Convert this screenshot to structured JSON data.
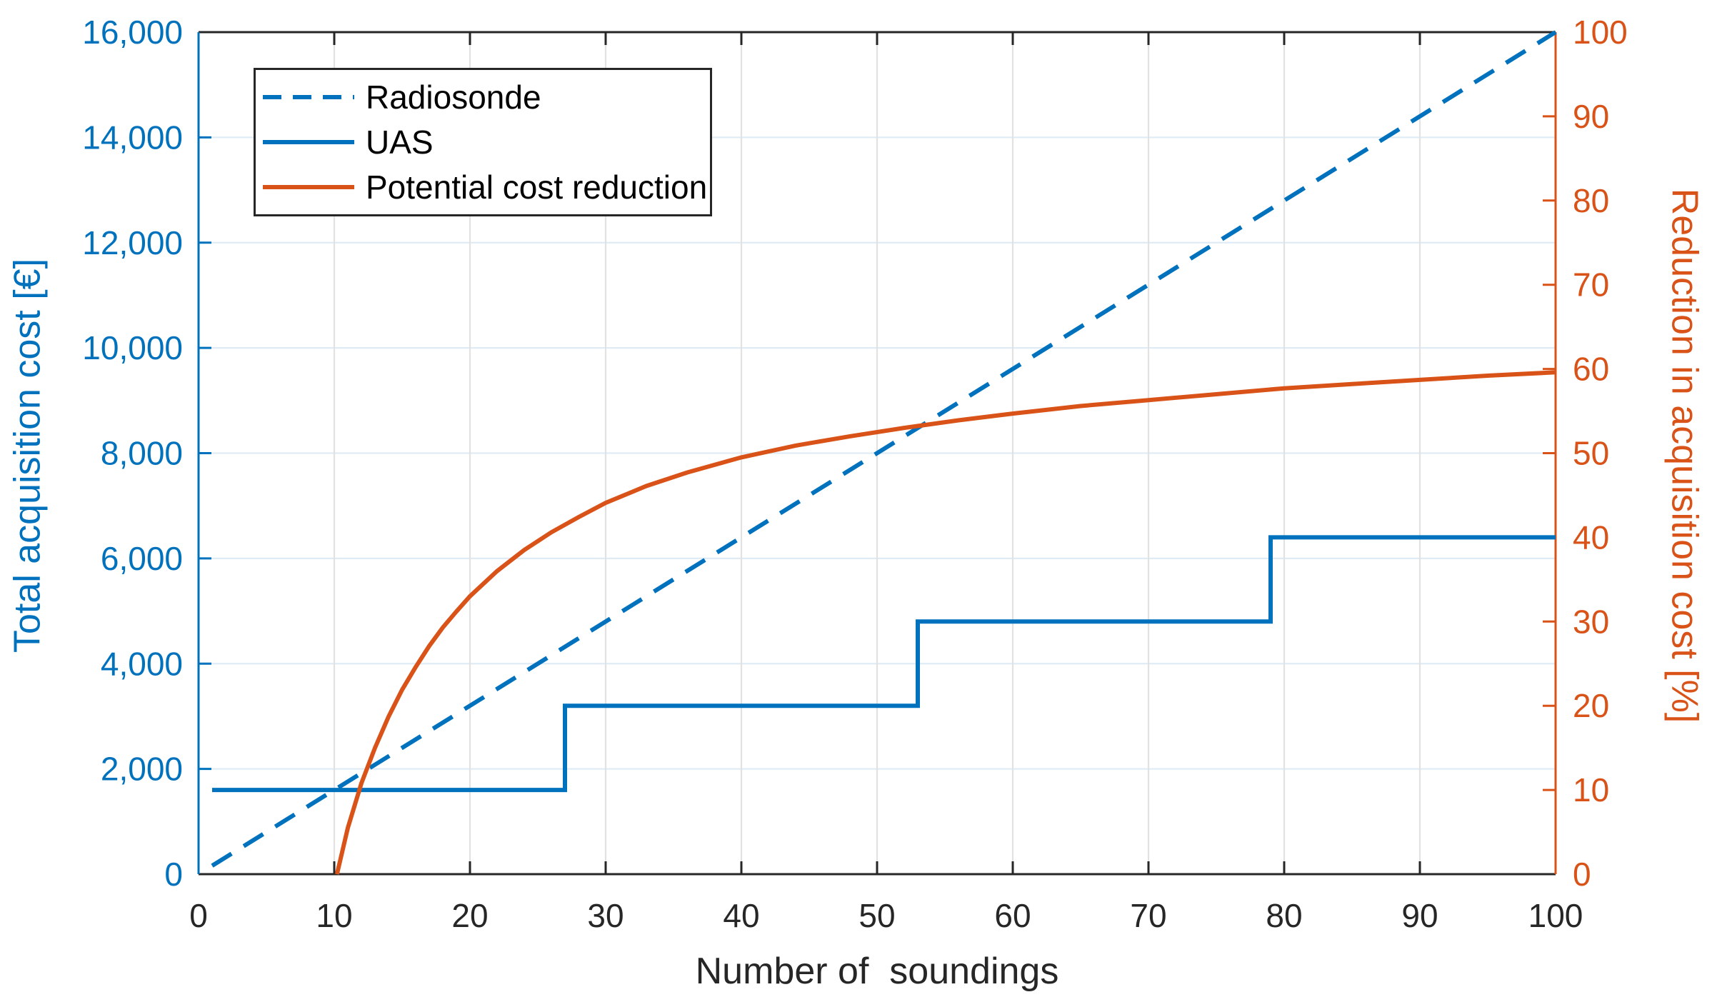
{
  "figure": {
    "background": "#ffffff",
    "x_axis": {
      "label": "Number of  soundings",
      "color": "#262626",
      "range": [
        0,
        100
      ],
      "tick_values": [
        0,
        10,
        20,
        30,
        40,
        50,
        60,
        70,
        80,
        90,
        100
      ],
      "tick_labels": [
        "0",
        "10",
        "20",
        "30",
        "40",
        "50",
        "60",
        "70",
        "80",
        "90",
        "100"
      ]
    },
    "left_axis": {
      "label": "Total acquisition cost [€]",
      "color": "#0072BD",
      "range": [
        0,
        16000
      ],
      "tick_values": [
        0,
        2000,
        4000,
        6000,
        8000,
        10000,
        12000,
        14000,
        16000
      ],
      "tick_labels": [
        "0",
        "2,000",
        "4,000",
        "6,000",
        "8,000",
        "10,000",
        "12,000",
        "14,000",
        "16,000"
      ]
    },
    "right_axis": {
      "label": "Reduction in acquisition cost [%]",
      "color": "#D95319",
      "range": [
        0,
        100
      ],
      "tick_values": [
        0,
        10,
        20,
        30,
        40,
        50,
        60,
        70,
        80,
        90,
        100
      ],
      "tick_labels": [
        "0",
        "10",
        "20",
        "30",
        "40",
        "50",
        "60",
        "70",
        "80",
        "90",
        "100"
      ]
    },
    "grid": {
      "horizontal_color": "#E0ECF5",
      "vertical_color": "#E2E2E2"
    },
    "legend": {
      "items": [
        {
          "label": "Radiosonde",
          "color": "#0072BD",
          "style": "dashed"
        },
        {
          "label": "UAS",
          "color": "#0072BD",
          "style": "solid"
        },
        {
          "label": "Potential cost reduction",
          "color": "#D95319",
          "style": "solid"
        }
      ]
    }
  },
  "chart_data": {
    "type": "line",
    "title": "",
    "xlabel": "Number of  soundings",
    "ylabel_left": "Total acquisition cost [€]",
    "ylabel_right": "Reduction in acquisition cost [%]",
    "xlim": [
      0,
      100
    ],
    "ylim_left": [
      0,
      16000
    ],
    "ylim_right": [
      0,
      100
    ],
    "grid": true,
    "legend_position": "top-left",
    "series": [
      {
        "name": "Radiosonde",
        "axis": "left",
        "style": "dashed",
        "color": "#0072BD",
        "points": [
          [
            1,
            160
          ],
          [
            100,
            16000
          ]
        ]
      },
      {
        "name": "UAS",
        "axis": "left",
        "style": "solid",
        "color": "#0072BD",
        "points": [
          [
            1,
            1600
          ],
          [
            27,
            1600
          ],
          [
            27,
            3200
          ],
          [
            53,
            3200
          ],
          [
            53,
            4800
          ],
          [
            79,
            4800
          ],
          [
            79,
            6400
          ],
          [
            100,
            6400
          ]
        ]
      },
      {
        "name": "Potential cost reduction",
        "axis": "right",
        "style": "solid",
        "color": "#D95319",
        "points": [
          [
            10.2,
            0
          ],
          [
            11,
            5.5
          ],
          [
            12,
            10.8
          ],
          [
            13,
            15.0
          ],
          [
            14,
            18.7
          ],
          [
            15,
            21.9
          ],
          [
            16,
            24.6
          ],
          [
            17,
            27.1
          ],
          [
            18,
            29.3
          ],
          [
            19,
            31.2
          ],
          [
            20,
            33.0
          ],
          [
            22,
            36.0
          ],
          [
            24,
            38.5
          ],
          [
            26,
            40.6
          ],
          [
            28,
            42.4
          ],
          [
            30,
            44.1
          ],
          [
            33,
            46.1
          ],
          [
            36,
            47.7
          ],
          [
            40,
            49.5
          ],
          [
            44,
            50.9
          ],
          [
            48,
            52.0
          ],
          [
            52,
            53.0
          ],
          [
            56,
            53.9
          ],
          [
            60,
            54.7
          ],
          [
            65,
            55.6
          ],
          [
            70,
            56.3
          ],
          [
            75,
            57.0
          ],
          [
            80,
            57.7
          ],
          [
            85,
            58.2
          ],
          [
            90,
            58.7
          ],
          [
            95,
            59.2
          ],
          [
            100,
            59.6
          ]
        ]
      }
    ]
  }
}
